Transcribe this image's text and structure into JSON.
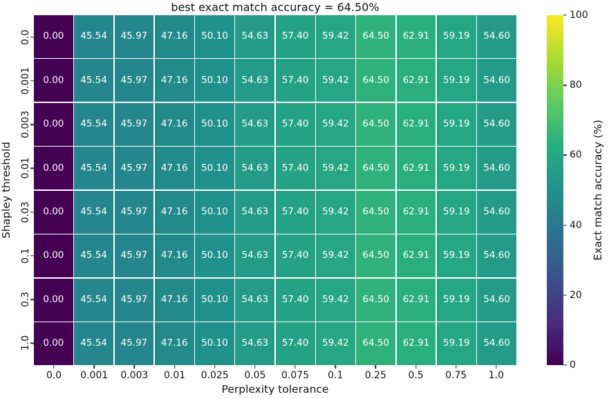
{
  "chart_data": {
    "type": "heatmap",
    "title": "best exact match accuracy = 64.50%",
    "xlabel": "Perplexity tolerance",
    "ylabel": "Shapley threshold",
    "colorbar_label": "Exact match accuracy (%)",
    "x_categories": [
      "0.0",
      "0.001",
      "0.003",
      "0.01",
      "0.025",
      "0.05",
      "0.075",
      "0.1",
      "0.25",
      "0.5",
      "0.75",
      "1.0"
    ],
    "y_categories": [
      "0.0",
      "0.001",
      "0.003",
      "0.01",
      "0.03",
      "0.1",
      "0.3",
      "1.0"
    ],
    "values": [
      [
        0.0,
        45.54,
        45.97,
        47.16,
        50.1,
        54.63,
        57.4,
        59.42,
        64.5,
        62.91,
        59.19,
        54.6
      ],
      [
        0.0,
        45.54,
        45.97,
        47.16,
        50.1,
        54.63,
        57.4,
        59.42,
        64.5,
        62.91,
        59.19,
        54.6
      ],
      [
        0.0,
        45.54,
        45.97,
        47.16,
        50.1,
        54.63,
        57.4,
        59.42,
        64.5,
        62.91,
        59.19,
        54.6
      ],
      [
        0.0,
        45.54,
        45.97,
        47.16,
        50.1,
        54.63,
        57.4,
        59.42,
        64.5,
        62.91,
        59.19,
        54.6
      ],
      [
        0.0,
        45.54,
        45.97,
        47.16,
        50.1,
        54.63,
        57.4,
        59.42,
        64.5,
        62.91,
        59.19,
        54.6
      ],
      [
        0.0,
        45.54,
        45.97,
        47.16,
        50.1,
        54.63,
        57.4,
        59.42,
        64.5,
        62.91,
        59.19,
        54.6
      ],
      [
        0.0,
        45.54,
        45.97,
        47.16,
        50.1,
        54.63,
        57.4,
        59.42,
        64.5,
        62.91,
        59.19,
        54.6
      ],
      [
        0.0,
        45.54,
        45.97,
        47.16,
        50.1,
        54.63,
        57.4,
        59.42,
        64.5,
        62.91,
        59.19,
        54.6
      ]
    ],
    "value_format_decimals": 2,
    "vmin": 0,
    "vmax": 100,
    "colorbar_ticks": [
      0,
      20,
      40,
      60,
      80,
      100
    ],
    "colormap": "viridis",
    "colormap_stops": [
      [
        0.0,
        "#440154"
      ],
      [
        0.125,
        "#472d7b"
      ],
      [
        0.25,
        "#3b528b"
      ],
      [
        0.375,
        "#2c728e"
      ],
      [
        0.5,
        "#21918c"
      ],
      [
        0.625,
        "#27ad81"
      ],
      [
        0.75,
        "#5ec962"
      ],
      [
        0.875,
        "#aadc32"
      ],
      [
        1.0,
        "#fde725"
      ]
    ],
    "cell_text_color": "#ffffff",
    "gridline_color": "#ffffff",
    "tick_color": "#262626",
    "legend_position": "right-colorbar",
    "grid": "cell-separators-only"
  }
}
